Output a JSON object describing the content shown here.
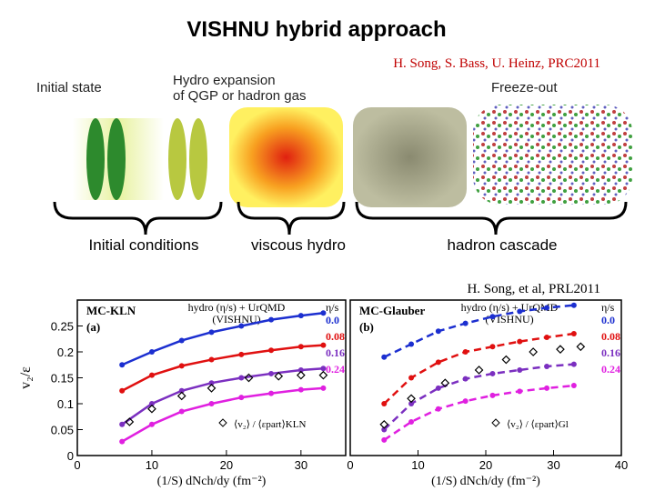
{
  "title": "VISHNU hybrid approach",
  "citation_top": "H. Song, S. Bass, U. Heinz, PRC2011",
  "stages": {
    "initial": "Initial state",
    "hydro": [
      "Hydro expansion",
      "of QGP or hadron gas"
    ],
    "freeze": "Freeze-out"
  },
  "phases": [
    "Initial conditions",
    "viscous hydro",
    "hadron cascade"
  ],
  "citation_bottom": "H. Song, et al, PRL2011",
  "chart_data": [
    {
      "type": "line",
      "title": "MC-KLN",
      "panel_label": "(a)",
      "legend_title": [
        "hydro (η/s) + UrQMD",
        "(VISHNU)"
      ],
      "legend_header": "η/s",
      "ylabel": "v₂/ε",
      "xlabel": "(1/S) dNch/dy (fm⁻²)",
      "dashed": false,
      "xlim": [
        0,
        36
      ],
      "xticks": [
        0,
        10,
        20,
        30
      ],
      "ylim": [
        0,
        0.3
      ],
      "yticks": [
        0,
        0.05,
        0.1,
        0.15,
        0.2,
        0.25
      ],
      "x": [
        6,
        10,
        14,
        18,
        22,
        26,
        30,
        33
      ],
      "series": [
        {
          "name": "0.0",
          "color": "#1c2fd0",
          "values": [
            0.175,
            0.2,
            0.222,
            0.238,
            0.25,
            0.262,
            0.27,
            0.275
          ]
        },
        {
          "name": "0.08",
          "color": "#e01010",
          "values": [
            0.125,
            0.155,
            0.173,
            0.185,
            0.195,
            0.203,
            0.21,
            0.213
          ]
        },
        {
          "name": "0.16",
          "color": "#7b2fc0",
          "values": [
            0.06,
            0.1,
            0.125,
            0.14,
            0.15,
            0.158,
            0.165,
            0.168
          ]
        },
        {
          "name": "0.24",
          "color": "#e020e0",
          "values": [
            0.027,
            0.06,
            0.085,
            0.1,
            0.112,
            0.12,
            0.127,
            0.13
          ]
        }
      ],
      "points": {
        "name": "⟨v₂⟩ / ⟨εpart⟩KLN",
        "color": "#000000",
        "x": [
          7,
          10,
          14,
          18,
          23,
          27,
          30,
          33
        ],
        "values": [
          0.065,
          0.09,
          0.115,
          0.13,
          0.15,
          0.153,
          0.155,
          0.155
        ]
      }
    },
    {
      "type": "line",
      "title": "MC-Glauber",
      "panel_label": "(b)",
      "legend_title": [
        "hydro (η/s) + UrQMD",
        "(VISHNU)"
      ],
      "legend_header": "η/s",
      "xlabel": "(1/S) dNch/dy (fm⁻²)",
      "dashed": true,
      "xlim": [
        0,
        40
      ],
      "xticks": [
        0,
        10,
        20,
        30,
        40
      ],
      "ylim": [
        0,
        0.3
      ],
      "x": [
        5,
        9,
        13,
        17,
        21,
        25,
        29,
        33
      ],
      "series": [
        {
          "name": "0.0",
          "color": "#1c2fd0",
          "values": [
            0.19,
            0.215,
            0.24,
            0.255,
            0.268,
            0.278,
            0.285,
            0.29
          ]
        },
        {
          "name": "0.08",
          "color": "#e01010",
          "values": [
            0.1,
            0.15,
            0.18,
            0.2,
            0.21,
            0.22,
            0.228,
            0.235
          ]
        },
        {
          "name": "0.16",
          "color": "#7b2fc0",
          "values": [
            0.05,
            0.1,
            0.13,
            0.148,
            0.158,
            0.165,
            0.172,
            0.176
          ]
        },
        {
          "name": "0.24",
          "color": "#e020e0",
          "values": [
            0.03,
            0.065,
            0.09,
            0.105,
            0.116,
            0.124,
            0.13,
            0.135
          ]
        }
      ],
      "points": {
        "name": "⟨v₂⟩ / ⟨εpart⟩Gl",
        "color": "#000000",
        "x": [
          5,
          9,
          14,
          19,
          23,
          27,
          31,
          34
        ],
        "values": [
          0.06,
          0.11,
          0.14,
          0.165,
          0.185,
          0.2,
          0.205,
          0.21
        ]
      }
    }
  ]
}
